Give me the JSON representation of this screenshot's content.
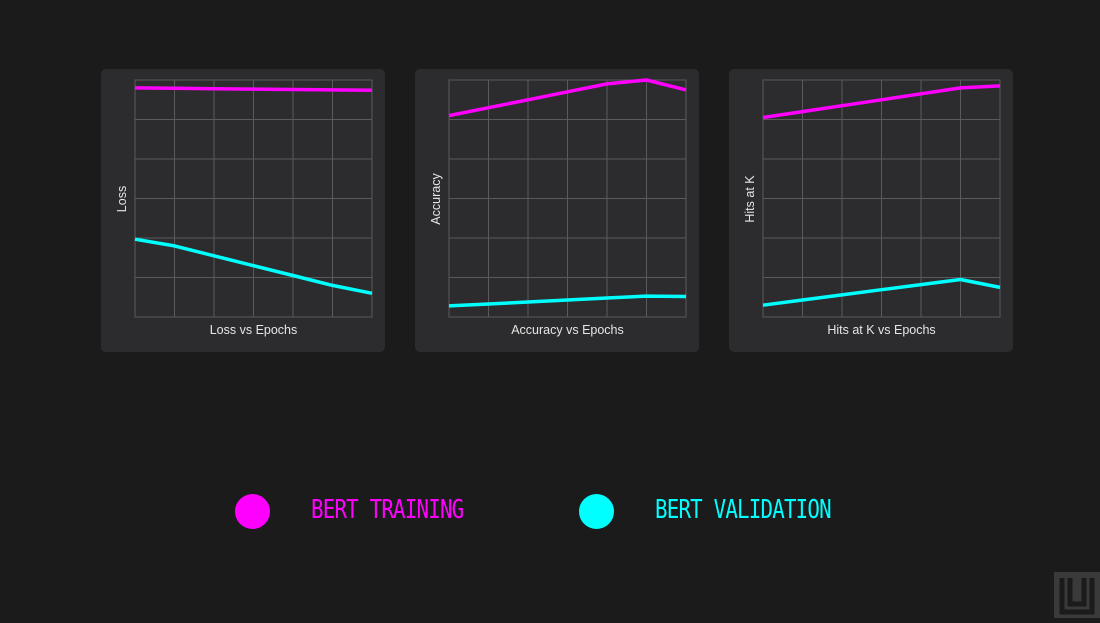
{
  "colors": {
    "training": "#ff00ff",
    "validation": "#00ffff",
    "background": "#1b1b1b",
    "card": "#2c2c2e",
    "grid": "#5a5a5c"
  },
  "chart_data": [
    {
      "type": "line",
      "title": "Loss vs Epochs",
      "ylabel": "Loss",
      "x": [
        0,
        1,
        2,
        3,
        4,
        5,
        6
      ],
      "xlim": [
        0,
        6
      ],
      "ylim": [
        0,
        6
      ],
      "grid": true,
      "series": [
        {
          "name": "BERT TRAINING",
          "color": "#ff00ff",
          "values": [
            5.8,
            5.79,
            5.78,
            5.77,
            5.76,
            5.75,
            5.74
          ]
        },
        {
          "name": "BERT VALIDATION",
          "color": "#00ffff",
          "values": [
            1.97,
            1.8,
            1.55,
            1.3,
            1.05,
            0.8,
            0.6
          ]
        }
      ]
    },
    {
      "type": "line",
      "title": "Accuracy vs Epochs",
      "ylabel": "Accuracy",
      "x": [
        0,
        1,
        2,
        3,
        4,
        5,
        6
      ],
      "xlim": [
        0,
        6
      ],
      "ylim": [
        0,
        6
      ],
      "grid": true,
      "series": [
        {
          "name": "BERT TRAINING",
          "color": "#ff00ff",
          "values": [
            5.1,
            5.3,
            5.5,
            5.7,
            5.9,
            6.1,
            5.75
          ]
        },
        {
          "name": "BERT VALIDATION",
          "color": "#00ffff",
          "values": [
            0.28,
            0.33,
            0.38,
            0.43,
            0.48,
            0.53,
            0.52
          ]
        }
      ]
    },
    {
      "type": "line",
      "title": "Hits at K vs Epochs",
      "ylabel": "Hits at K",
      "x": [
        0,
        1,
        2,
        3,
        4,
        5,
        6
      ],
      "xlim": [
        0,
        6
      ],
      "ylim": [
        0,
        6
      ],
      "grid": true,
      "series": [
        {
          "name": "BERT TRAINING",
          "color": "#ff00ff",
          "values": [
            5.05,
            5.2,
            5.35,
            5.5,
            5.65,
            5.8,
            5.85
          ]
        },
        {
          "name": "BERT VALIDATION",
          "color": "#00ffff",
          "values": [
            0.3,
            0.43,
            0.56,
            0.69,
            0.82,
            0.95,
            0.75
          ]
        }
      ]
    }
  ],
  "legend": [
    {
      "label": "BERT TRAINING",
      "color": "#ff00ff"
    },
    {
      "label": "BERT VALIDATION",
      "color": "#00ffff"
    }
  ],
  "logo": {
    "icon": "brand-logo-icon"
  }
}
